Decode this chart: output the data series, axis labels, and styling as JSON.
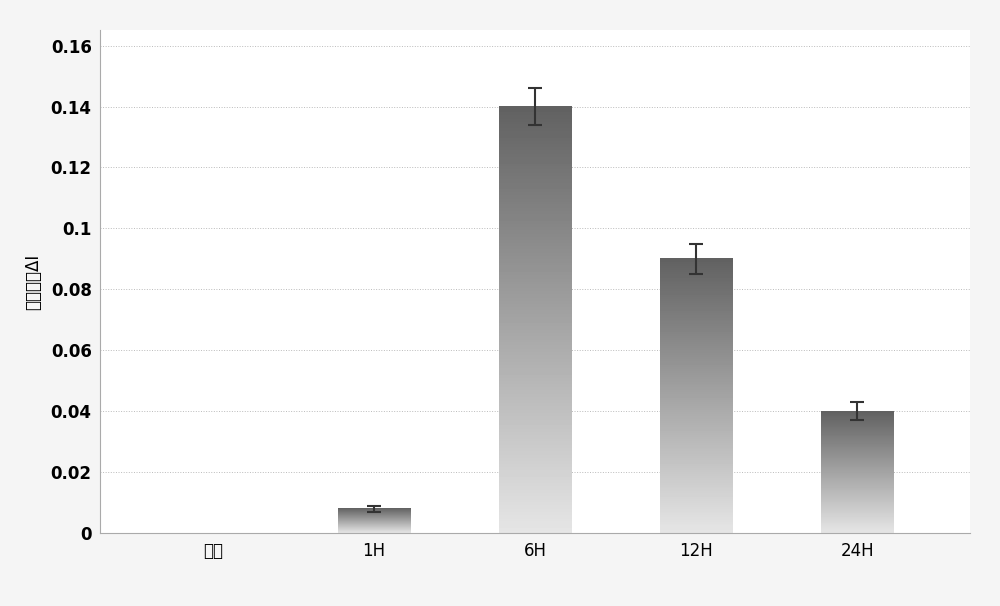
{
  "categories": [
    "对照",
    "1H",
    "6H",
    "12H",
    "24H"
  ],
  "values": [
    0.0,
    0.008,
    0.14,
    0.09,
    0.04
  ],
  "errors": [
    0.0,
    0.001,
    0.006,
    0.005,
    0.003
  ],
  "ylabel": "荧光强度ΔI",
  "ylim": [
    0,
    0.165
  ],
  "yticks": [
    0,
    0.02,
    0.04,
    0.06,
    0.08,
    0.1,
    0.12,
    0.14,
    0.16
  ],
  "ytick_labels": [
    "0",
    "0.02",
    "0.04",
    "0.06",
    "0.08",
    "0.1",
    "0.12",
    "0.14",
    "0.16"
  ],
  "bar_color_top": "#666666",
  "bar_color_bottom": "#f0f0f0",
  "background_color": "#ffffff",
  "figure_background": "#f5f5f5",
  "grid_color": "#bbbbbb",
  "bar_width": 0.45,
  "axis_fontsize": 12,
  "tick_fontsize": 12,
  "ylabel_fontsize": 12
}
